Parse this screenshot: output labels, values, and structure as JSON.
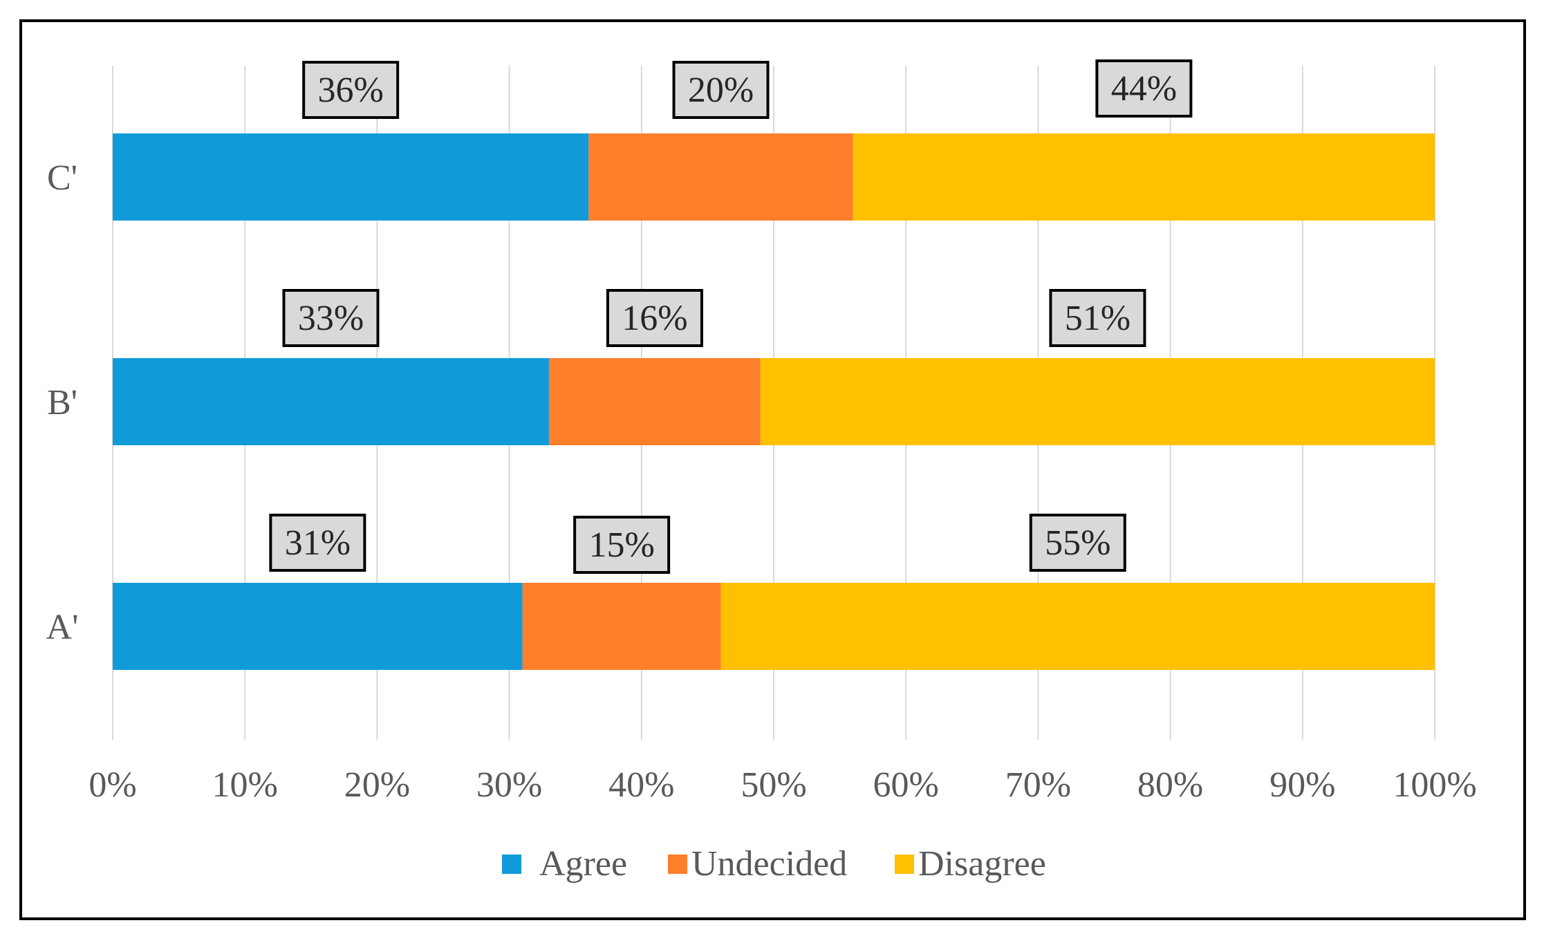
{
  "chart_data": {
    "type": "bar",
    "orientation": "horizontal",
    "stacked": true,
    "categories": [
      "A'",
      "B'",
      "C'"
    ],
    "series": [
      {
        "name": "Agree",
        "color": "#119ad8",
        "values": [
          31,
          33,
          36
        ],
        "labels": [
          "31%",
          "33%",
          "36%"
        ]
      },
      {
        "name": "Undecided",
        "color": "#fe7e29",
        "values": [
          15,
          16,
          20
        ],
        "labels": [
          "15%",
          "16%",
          "20%"
        ]
      },
      {
        "name": "Disagree",
        "color": "#ffc000",
        "values": [
          55,
          51,
          44
        ],
        "labels": [
          "55%",
          "51%",
          "44%"
        ]
      }
    ],
    "x_ticks": [
      "0%",
      "10%",
      "20%",
      "30%",
      "40%",
      "50%",
      "60%",
      "70%",
      "80%",
      "90%",
      "100%"
    ],
    "xlim": [
      0,
      100
    ],
    "grid": true,
    "legend_position": "bottom"
  }
}
